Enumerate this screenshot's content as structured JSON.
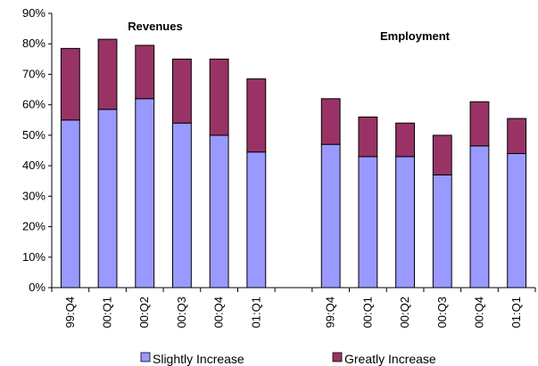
{
  "chart_data": {
    "type": "bar",
    "stacked": true,
    "panels": [
      {
        "title": "Revenues",
        "categories": [
          "99:Q4",
          "00:Q1",
          "00:Q2",
          "00:Q3",
          "00:Q4",
          "01:Q1"
        ]
      },
      {
        "title": "Employment",
        "categories": [
          "99:Q4",
          "00:Q1",
          "00:Q2",
          "00:Q3",
          "00:Q4",
          "01:Q1"
        ]
      }
    ],
    "categories": [
      "99:Q4",
      "00:Q1",
      "00:Q2",
      "00:Q3",
      "00:Q4",
      "01:Q1",
      "",
      "99:Q4",
      "00:Q1",
      "00:Q2",
      "00:Q3",
      "00:Q4",
      "01:Q1"
    ],
    "series": [
      {
        "name": "Slightly Increase",
        "color": "#9999ff",
        "values": [
          55,
          58.5,
          62,
          54,
          50,
          44.5,
          null,
          47,
          43,
          43,
          37,
          46.5,
          44
        ]
      },
      {
        "name": "Greatly Increase",
        "color": "#993366",
        "values": [
          23.5,
          23,
          17.5,
          21,
          25,
          24,
          null,
          15,
          13,
          11,
          13,
          14.5,
          11.5
        ]
      }
    ],
    "yticks": [
      "0%",
      "10%",
      "20%",
      "30%",
      "40%",
      "50%",
      "60%",
      "70%",
      "80%",
      "90%"
    ],
    "ylim": [
      0,
      90
    ],
    "legend_position": "bottom",
    "grid": false
  }
}
